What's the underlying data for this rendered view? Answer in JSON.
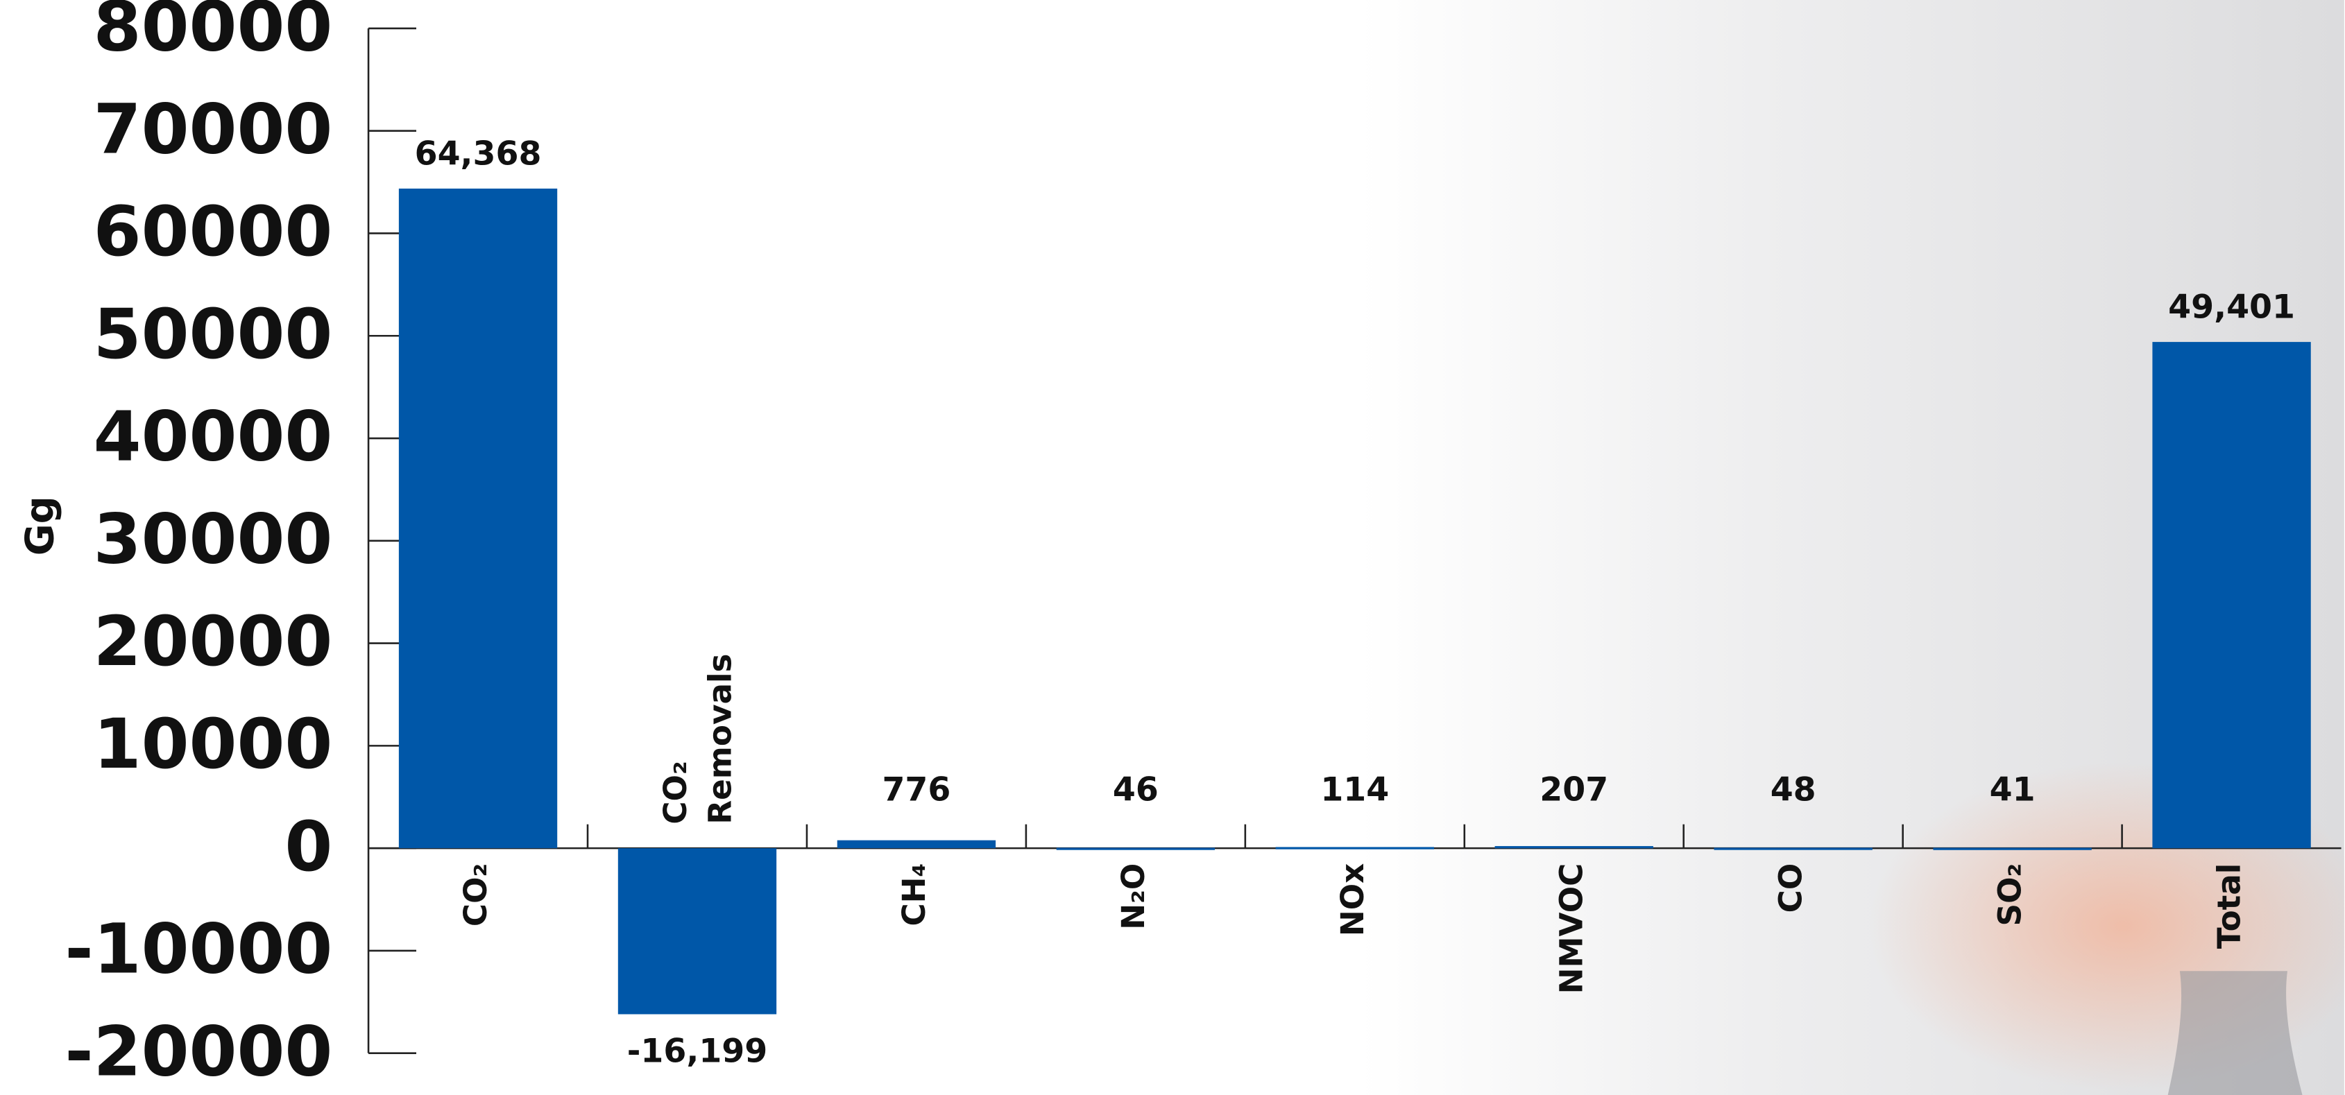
{
  "chart_data": {
    "type": "bar",
    "y_label": "Gg",
    "categories": [
      "CO₂",
      "CO₂ Removals",
      "CH₄",
      "N₂O",
      "NOx",
      "NMVOC",
      "CO",
      "SO₂",
      "Total"
    ],
    "values": [
      64368,
      -16199,
      776,
      46,
      114,
      207,
      48,
      41,
      49401
    ],
    "value_labels": [
      "64,368",
      "-16,199",
      "776",
      "46",
      "114",
      "207",
      "48",
      "41",
      "49,401"
    ],
    "color": "#0057a8",
    "ylim": [
      -20000,
      80000
    ],
    "yticks": [
      -20000,
      -10000,
      0,
      10000,
      20000,
      30000,
      40000,
      50000,
      60000,
      70000,
      80000
    ]
  }
}
